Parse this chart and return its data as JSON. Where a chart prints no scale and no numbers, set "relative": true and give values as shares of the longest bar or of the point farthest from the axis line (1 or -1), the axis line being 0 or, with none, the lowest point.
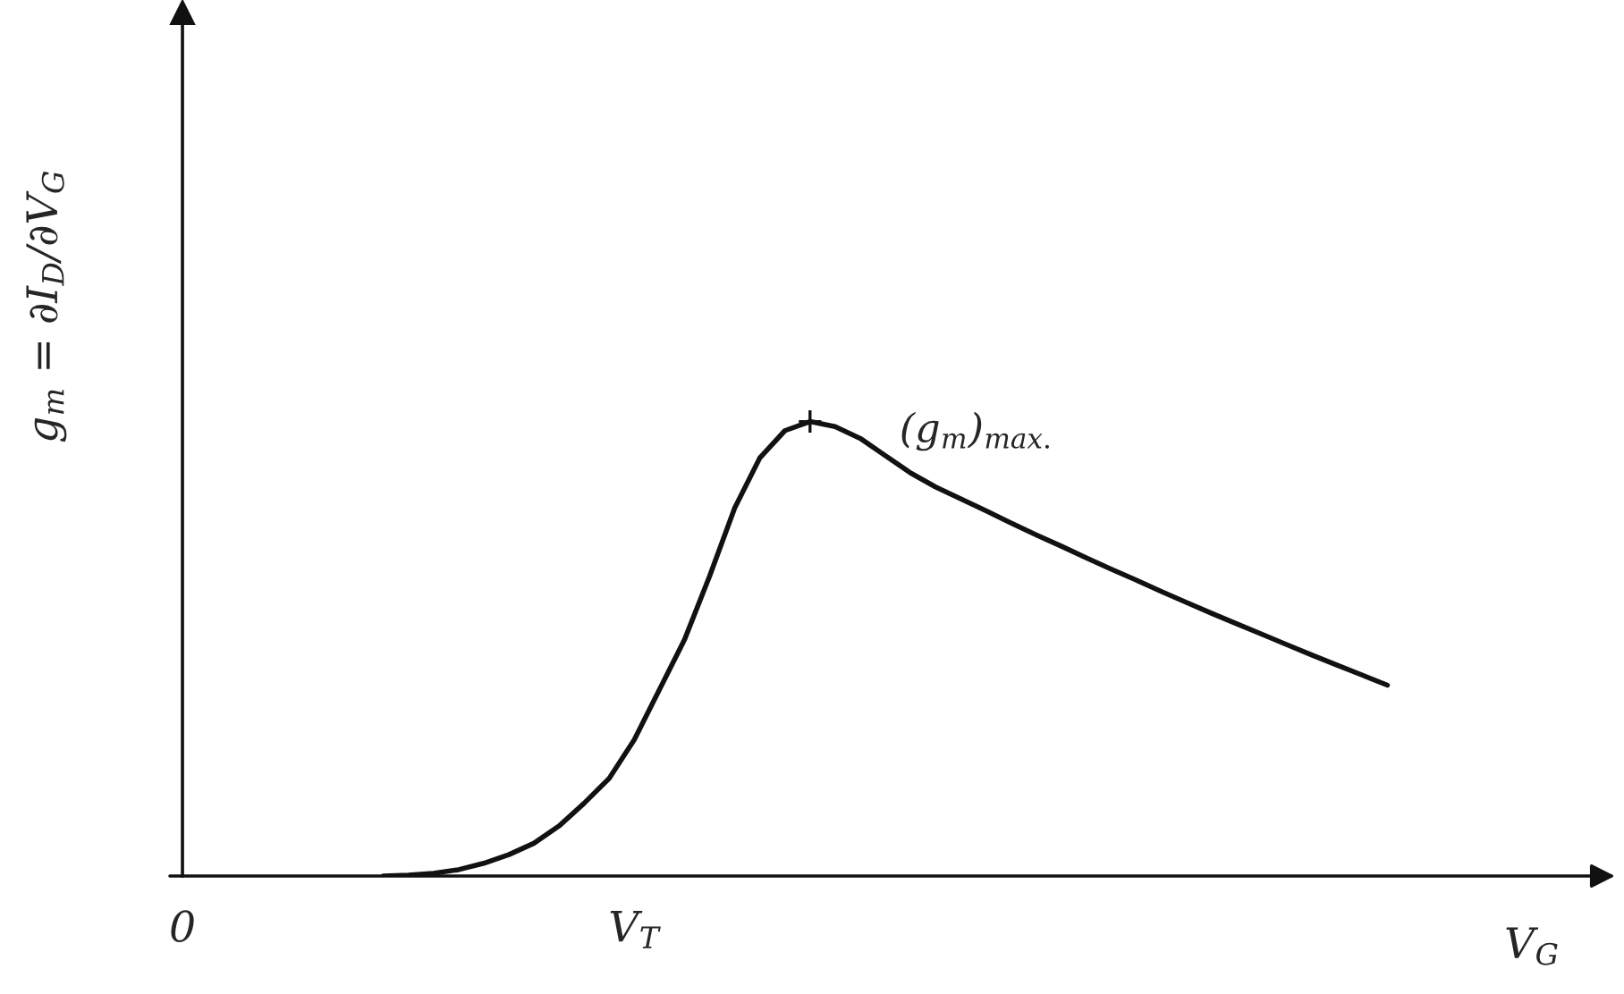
{
  "chart_data": {
    "type": "line",
    "relative": true,
    "xlabel": "V$_{G}$",
    "ylabel": "g$_{m}$ = ∂I$_{D}$/∂V$_{G}$",
    "categories": [
      "0",
      null,
      null,
      null,
      null,
      null,
      null,
      null,
      null,
      null,
      null,
      null,
      null,
      null,
      null,
      null,
      null,
      null,
      "V$_{T}$",
      null,
      null,
      null,
      null,
      null,
      null,
      null,
      null,
      null,
      null,
      null,
      null,
      null,
      null,
      null,
      null,
      null,
      null,
      null,
      null,
      null,
      null,
      null,
      null,
      null,
      null,
      null,
      null,
      null,
      null,
      null,
      null,
      null,
      null,
      null,
      null,
      null,
      null
    ],
    "values": [
      null,
      null,
      null,
      null,
      null,
      null,
      null,
      null,
      0.0,
      0.002,
      0.006,
      0.014,
      0.028,
      0.047,
      0.072,
      0.11,
      0.16,
      0.215,
      0.3,
      0.41,
      0.52,
      0.66,
      0.81,
      0.92,
      0.98,
      1.0,
      0.989,
      0.963,
      0.925,
      0.887,
      0.856,
      0.83,
      0.804,
      0.777,
      0.751,
      0.726,
      0.7,
      0.675,
      0.651,
      0.626,
      0.602,
      0.578,
      0.555,
      0.532,
      0.509,
      0.486,
      0.464,
      0.442,
      0.42,
      null,
      null,
      null,
      null,
      null,
      null,
      null,
      null
    ],
    "color": "#111111",
    "annotations": [
      "(g$_{m}$)$_{max.}$"
    ]
  }
}
